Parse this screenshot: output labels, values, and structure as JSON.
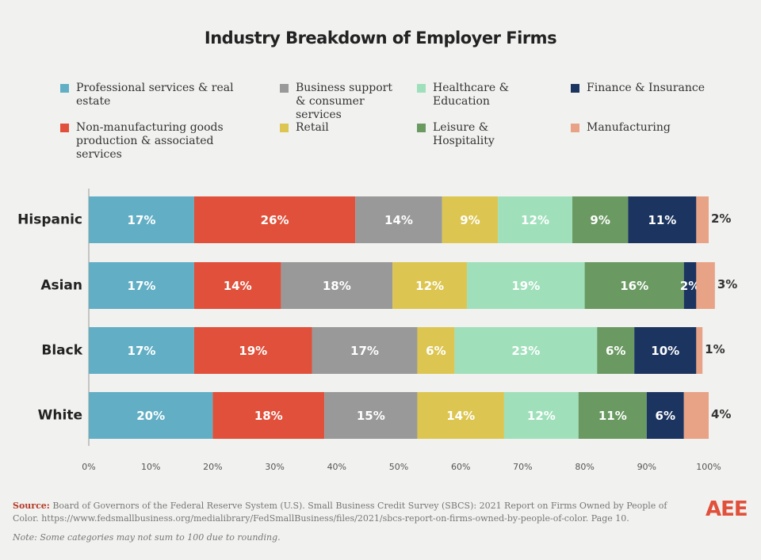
{
  "chart_data": {
    "type": "stacked-bar-horizontal",
    "title": "Industry Breakdown of Employer Firms",
    "categories": [
      "Hispanic",
      "Asian",
      "Black",
      "White"
    ],
    "series": [
      {
        "name": "Professional services & real estate",
        "color": "#62afc5",
        "values": [
          17,
          17,
          17,
          20
        ],
        "value_labels": [
          "17%",
          "17%",
          "17%",
          "20%"
        ]
      },
      {
        "name": "Non-manufacturing goods production & associated services",
        "color": "#e0503a",
        "values": [
          26,
          14,
          19,
          18
        ],
        "value_labels": [
          "26%",
          "14%",
          "19%",
          "18%"
        ]
      },
      {
        "name": "Business support & consumer services",
        "color": "#999999",
        "values": [
          14,
          18,
          17,
          15
        ],
        "value_labels": [
          "14%",
          "18%",
          "17%",
          "15%"
        ]
      },
      {
        "name": "Retail",
        "color": "#dcc651",
        "values": [
          9,
          12,
          6,
          14
        ],
        "value_labels": [
          "9%",
          "12%",
          "6%",
          "14%"
        ]
      },
      {
        "name": "Healthcare & Education",
        "color": "#9fe0bb",
        "values": [
          12,
          19,
          23,
          12
        ],
        "value_labels": [
          "12%",
          "19%",
          "23%",
          "12%"
        ]
      },
      {
        "name": "Leisure & Hospitality",
        "color": "#6a9a62",
        "values": [
          9,
          16,
          6,
          11
        ],
        "value_labels": [
          "9%",
          "16%",
          "6%",
          "11%"
        ]
      },
      {
        "name": "Finance & Insurance",
        "color": "#1c3560",
        "values": [
          11,
          2,
          10,
          6
        ],
        "value_labels": [
          "11%",
          "2%",
          "10%",
          "6%"
        ]
      },
      {
        "name": "Manufacturing",
        "color": "#e8a285",
        "values": [
          2,
          3,
          1,
          4
        ],
        "value_labels": [
          "2%",
          "3%",
          "1%",
          "4%"
        ]
      }
    ],
    "xlim": [
      0,
      100
    ],
    "xticks": [
      {
        "value": 0,
        "label": "0%"
      },
      {
        "value": 10,
        "label": "10%"
      },
      {
        "value": 20,
        "label": "20%"
      },
      {
        "value": 30,
        "label": "30%"
      },
      {
        "value": 40,
        "label": "40%"
      },
      {
        "value": 50,
        "label": "50%"
      },
      {
        "value": 60,
        "label": "60%"
      },
      {
        "value": 70,
        "label": "70%"
      },
      {
        "value": 80,
        "label": "80%"
      },
      {
        "value": 90,
        "label": "90%"
      },
      {
        "value": 100,
        "label": "100%"
      }
    ],
    "source_label": "Source:",
    "source": "Board of Governors of the Federal Reserve System (U.S). Small Business Credit Survey (SBCS): 2021 Report on Firms Owned by People of Color. https://www.fedsmallbusiness.org/medialibrary/FedSmallBusiness/files/2021/sbcs-report-on-firms-owned-by-people-of-color. Page 10.",
    "note": "Note: Some categories may not sum to 100 due to rounding.",
    "logo": "AEE"
  }
}
